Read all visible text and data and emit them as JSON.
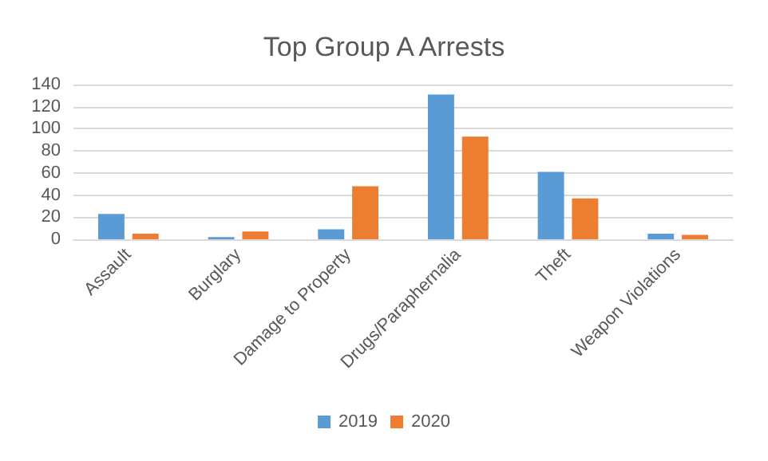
{
  "chart_data": {
    "type": "bar",
    "title": "Top Group A Arrests",
    "categories": [
      "Assault",
      "Burglary",
      "Damage to Property",
      "Drugs/Paraphernalia",
      "Theft",
      "Weapon Violations"
    ],
    "series": [
      {
        "name": "2019",
        "color": "#5b9bd5",
        "values": [
          23,
          2,
          9,
          131,
          61,
          5
        ]
      },
      {
        "name": "2020",
        "color": "#ed7d31",
        "values": [
          5,
          7,
          48,
          93,
          37,
          4
        ]
      }
    ],
    "ylim": [
      0,
      140
    ],
    "yticks": [
      0,
      20,
      40,
      60,
      80,
      100,
      120,
      140
    ],
    "grid": "y",
    "legend": "bottom"
  }
}
